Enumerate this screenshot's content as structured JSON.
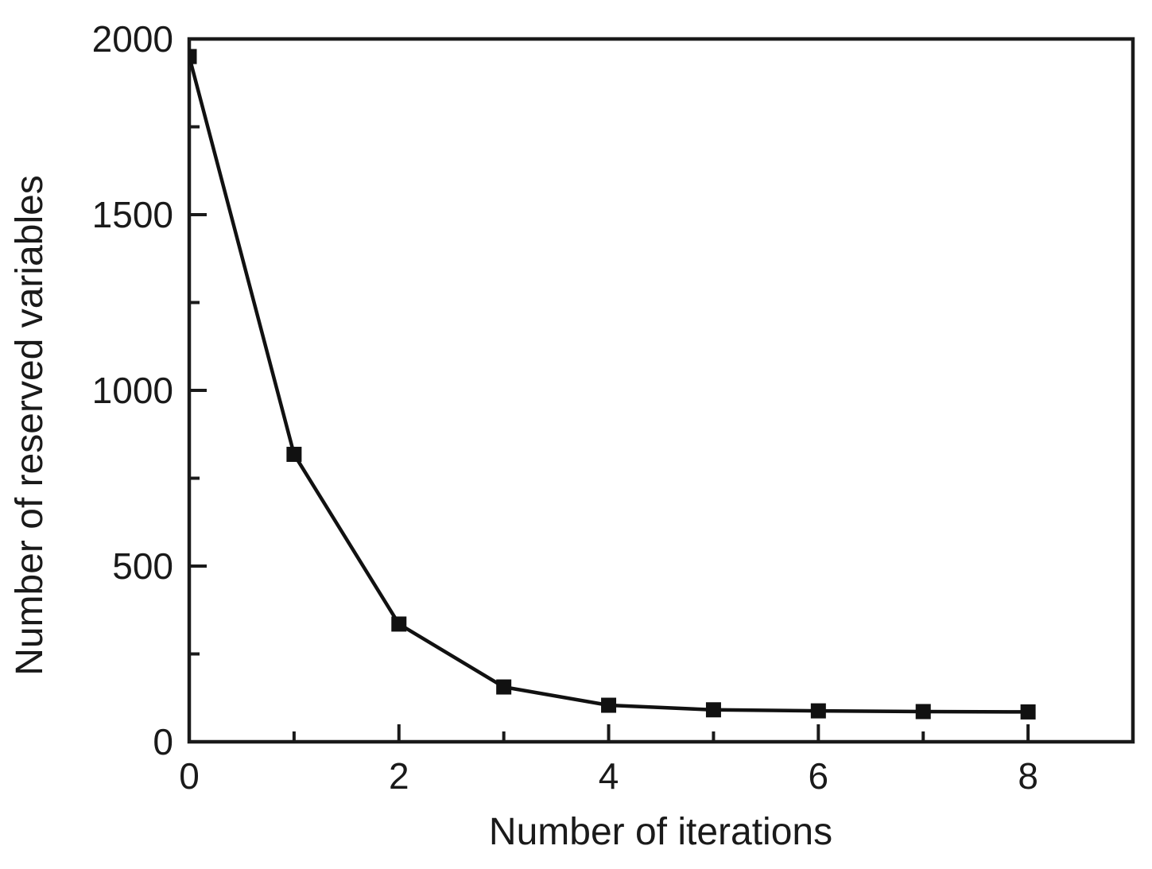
{
  "chart_data": {
    "type": "line",
    "title": "",
    "xlabel": "Number of iterations",
    "ylabel": "Number of reserved variables",
    "series": [
      {
        "name": "Number of reserved variables",
        "x": [
          0,
          1,
          2,
          3,
          4,
          5,
          6,
          7,
          8
        ],
        "y": [
          1950,
          818,
          335,
          156,
          104,
          91,
          88,
          86,
          85
        ]
      }
    ],
    "xlim": [
      0,
      9
    ],
    "ylim": [
      0,
      2000
    ],
    "x_major_ticks": [
      0,
      2,
      4,
      6,
      8
    ],
    "x_minor_ticks": [
      1,
      3,
      5,
      7
    ],
    "y_major_ticks": [
      0,
      500,
      1000,
      1500,
      2000
    ],
    "y_minor_ticks": [
      250,
      750,
      1250,
      1750
    ],
    "marker": "filled-square-marker",
    "grid": false,
    "legend": null,
    "colors": {
      "line": "#111111",
      "marker": "#111111",
      "axis": "#1a1a1a",
      "background": "#ffffff"
    }
  }
}
